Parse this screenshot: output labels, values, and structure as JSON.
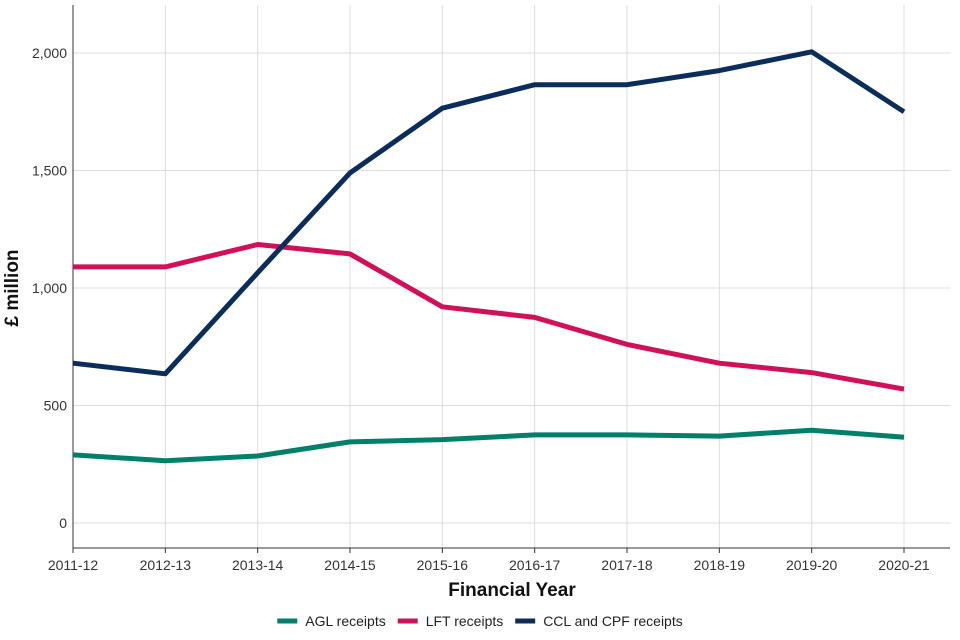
{
  "chart_data": {
    "type": "line",
    "title": "",
    "xlabel": "Financial Year",
    "ylabel": "£ million",
    "categories": [
      "2011-12",
      "2012-13",
      "2013-14",
      "2014-15",
      "2015-16",
      "2016-17",
      "2017-18",
      "2018-19",
      "2019-20",
      "2020-21"
    ],
    "ylim": [
      0,
      2000
    ],
    "yticks": [
      0,
      500,
      1000,
      1500,
      2000
    ],
    "ytick_labels": [
      "0",
      "500",
      "1,000",
      "1,500",
      "2,000"
    ],
    "grid": true,
    "legend_position": "bottom",
    "series": [
      {
        "name": "AGL receipts",
        "color": "#00806a",
        "values": [
          290,
          265,
          285,
          345,
          355,
          375,
          375,
          370,
          395,
          365
        ]
      },
      {
        "name": "LFT receipts",
        "color": "#d0115a",
        "values": [
          1090,
          1090,
          1185,
          1145,
          920,
          875,
          760,
          680,
          640,
          570
        ]
      },
      {
        "name": "CCL and CPF receipts",
        "color": "#0b2d5b",
        "values": [
          680,
          635,
          1065,
          1490,
          1765,
          1865,
          1865,
          1925,
          2005,
          1750
        ]
      }
    ]
  }
}
